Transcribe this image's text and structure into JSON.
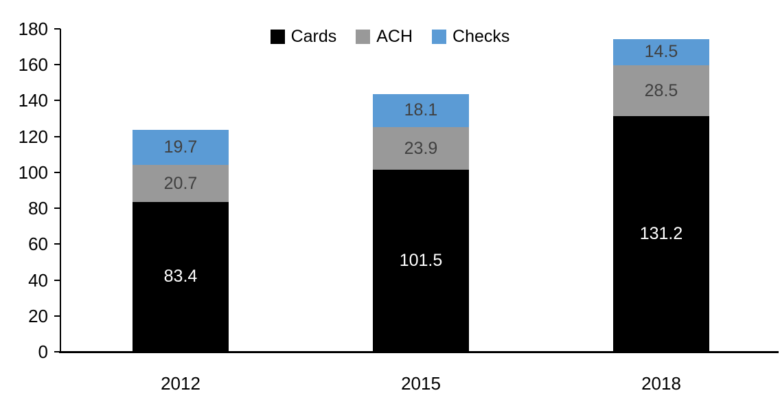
{
  "chart_data": {
    "type": "bar",
    "stacked": true,
    "title": "",
    "xlabel": "",
    "ylabel": "",
    "categories": [
      "2012",
      "2015",
      "2018"
    ],
    "series": [
      {
        "name": "Cards",
        "color": "#000000",
        "label_color": "#FFFFFF",
        "values": [
          83.4,
          101.5,
          131.2
        ]
      },
      {
        "name": "ACH",
        "color": "#999999",
        "label_color": "#404040",
        "values": [
          20.7,
          23.9,
          28.5
        ]
      },
      {
        "name": "Checks",
        "color": "#5B9BD5",
        "label_color": "#404040",
        "values": [
          19.7,
          18.1,
          14.5
        ]
      }
    ],
    "totals": [
      123.8,
      143.5,
      174.2
    ],
    "ylim": [
      0,
      180
    ],
    "yticks": [
      0,
      20,
      40,
      60,
      80,
      100,
      120,
      140,
      160,
      180
    ],
    "grid": false,
    "legend_position": "top-center",
    "axis_color": "#000000"
  }
}
